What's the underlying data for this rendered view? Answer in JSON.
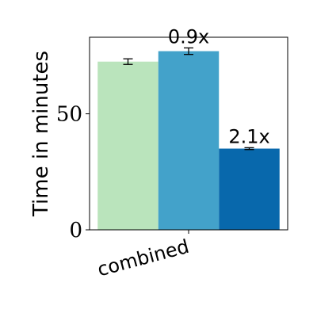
{
  "chart_data": {
    "type": "bar",
    "categories": [
      "combined"
    ],
    "series": [
      {
        "values": [
          72.5
        ],
        "errors": [
          1.2
        ],
        "color": "#bae4bc",
        "label": ""
      },
      {
        "values": [
          77.0
        ],
        "errors": [
          1.4
        ],
        "color": "#43a2ca",
        "label": "0.9x"
      },
      {
        "values": [
          35.0
        ],
        "errors": [
          0.4
        ],
        "color": "#0868ac",
        "label": "2.1x"
      }
    ],
    "xlabel": "",
    "ylabel": "Time in minutes",
    "ylim": [
      0,
      83
    ],
    "yticks": [
      0,
      50
    ],
    "grid": false,
    "legend": "none"
  }
}
